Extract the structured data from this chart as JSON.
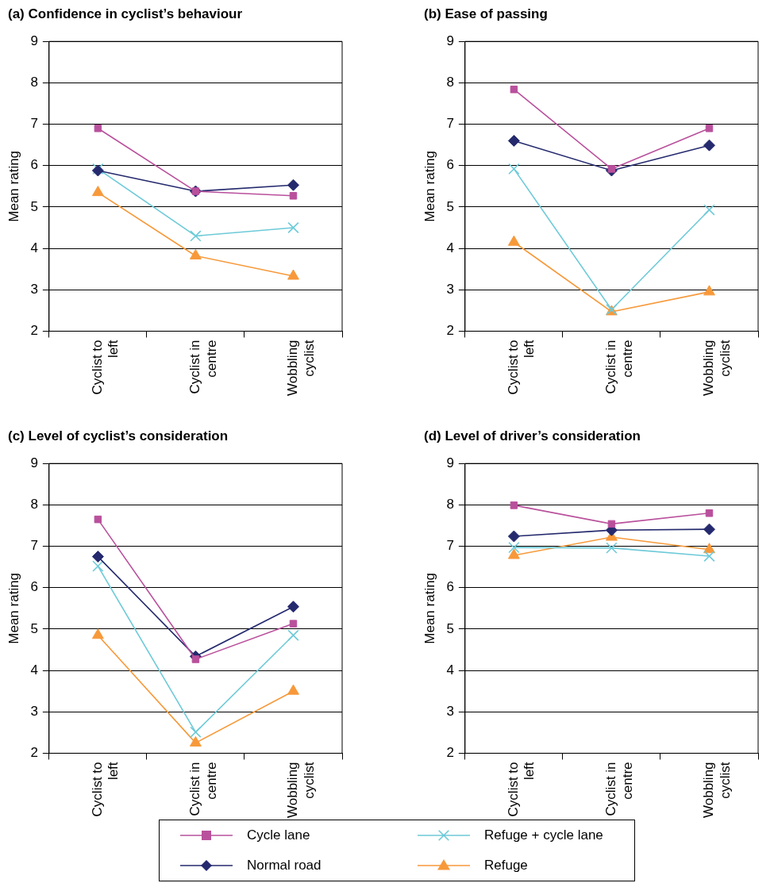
{
  "chart_data": [
    {
      "type": "line",
      "title": "(a) Confidence in cyclist’s behaviour",
      "ylabel": "Mean rating",
      "categories": [
        "Cyclist to left",
        "Cyclist in centre",
        "Wobbling cyclist"
      ],
      "ylim": [
        2,
        9
      ],
      "yticks": [
        2,
        3,
        4,
        5,
        6,
        7,
        8,
        9
      ],
      "grid": "y",
      "legend": "bottom",
      "series": [
        {
          "name": "Cycle lane",
          "color": "#b9509c",
          "marker": "square",
          "values": [
            6.9,
            5.38,
            5.27
          ]
        },
        {
          "name": "Normal road",
          "color": "#252a6e",
          "marker": "diamond",
          "values": [
            5.88,
            5.38,
            5.53
          ]
        },
        {
          "name": "Refuge + cycle lane",
          "color": "#6dcad8",
          "marker": "cross",
          "values": [
            5.92,
            4.3,
            4.5
          ]
        },
        {
          "name": "Refuge",
          "color": "#f7993a",
          "marker": "triangle",
          "values": [
            5.35,
            3.82,
            3.33
          ]
        }
      ]
    },
    {
      "type": "line",
      "title": "(b) Ease of passing",
      "ylabel": "Mean rating",
      "categories": [
        "Cyclist to left",
        "Cyclist in centre",
        "Wobbling cyclist"
      ],
      "ylim": [
        2,
        9
      ],
      "yticks": [
        2,
        3,
        4,
        5,
        6,
        7,
        8,
        9
      ],
      "grid": "y",
      "series": [
        {
          "color": "#b9509c",
          "marker": "square",
          "values": [
            7.84,
            5.92,
            6.9
          ]
        },
        {
          "color": "#252a6e",
          "marker": "diamond",
          "values": [
            6.6,
            5.88,
            6.49
          ]
        },
        {
          "color": "#6dcad8",
          "marker": "cross",
          "values": [
            5.92,
            2.52,
            4.93
          ]
        },
        {
          "color": "#f7993a",
          "marker": "triangle",
          "values": [
            4.15,
            2.47,
            2.95
          ]
        }
      ]
    },
    {
      "type": "line",
      "title": "(c) Level of cyclist’s consideration",
      "ylabel": "Mean rating",
      "categories": [
        "Cyclist to left",
        "Cyclist in centre",
        "Wobbling cyclist"
      ],
      "ylim": [
        2,
        9
      ],
      "yticks": [
        2,
        3,
        4,
        5,
        6,
        7,
        8,
        9
      ],
      "grid": "y",
      "series": [
        {
          "color": "#b9509c",
          "marker": "square",
          "values": [
            7.65,
            4.27,
            5.13
          ]
        },
        {
          "color": "#252a6e",
          "marker": "diamond",
          "values": [
            6.75,
            4.34,
            5.54
          ]
        },
        {
          "color": "#6dcad8",
          "marker": "cross",
          "values": [
            6.52,
            2.51,
            4.85
          ]
        },
        {
          "color": "#f7993a",
          "marker": "triangle",
          "values": [
            4.85,
            2.25,
            3.5
          ]
        }
      ]
    },
    {
      "type": "line",
      "title": "(d) Level of driver’s consideration",
      "ylabel": "Mean rating",
      "categories": [
        "Cyclist to left",
        "Cyclist in centre",
        "Wobbling cyclist"
      ],
      "ylim": [
        2,
        9
      ],
      "yticks": [
        2,
        3,
        4,
        5,
        6,
        7,
        8,
        9
      ],
      "grid": "y",
      "series": [
        {
          "color": "#b9509c",
          "marker": "square",
          "values": [
            7.99,
            7.54,
            7.8
          ]
        },
        {
          "color": "#252a6e",
          "marker": "diamond",
          "values": [
            7.24,
            7.39,
            7.41
          ]
        },
        {
          "color": "#6dcad8",
          "marker": "cross",
          "values": [
            6.97,
            6.96,
            6.76
          ]
        },
        {
          "color": "#f7993a",
          "marker": "triangle",
          "values": [
            6.78,
            7.22,
            6.92
          ]
        }
      ]
    }
  ]
}
